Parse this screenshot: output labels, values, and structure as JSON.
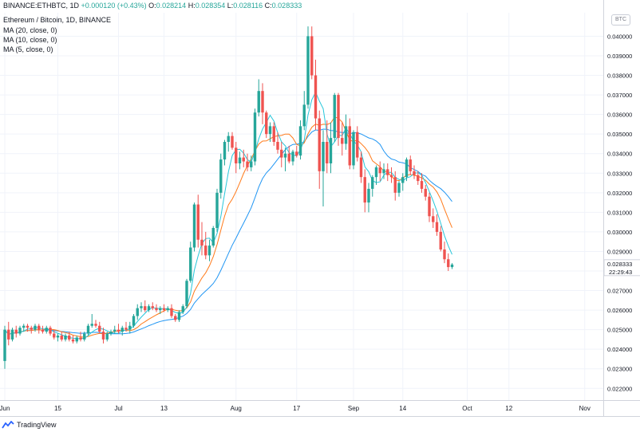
{
  "header": {
    "symbol_line": "BINANCE:ETHBTC, 1D",
    "change": "+0.000120 (+0.43%)",
    "open_key": "O:",
    "open": "0.028214",
    "high_key": "H:",
    "high": "0.028354",
    "low_key": "L:",
    "low": "0.028116",
    "close_key": "C:",
    "close": "0.028333",
    "title": "Ethereum / Bitcoin, 1D, BINANCE",
    "studies": [
      "MA (20, close, 0)",
      "MA (10, close, 0)",
      "MA (5, close, 0)"
    ]
  },
  "currency_badge": "BTC",
  "brand": "TradingView",
  "colors": {
    "up": "#26a69a",
    "down": "#ef5350",
    "ma20": "#2196f3",
    "ma10": "#ff7a1a",
    "ma5": "#26c6da",
    "grid": "#f0f3fa",
    "axis_text": "#131722",
    "last_price_badge": "#26a69a"
  },
  "chart_data": {
    "type": "candlestick",
    "title": "Ethereum / Bitcoin, 1D, BINANCE",
    "ylim": [
      0.0214,
      0.0412
    ],
    "y_ticks": [
      "0.040000",
      "0.039000",
      "0.038000",
      "0.037000",
      "0.036000",
      "0.035000",
      "0.034000",
      "0.033000",
      "0.032000",
      "0.031000",
      "0.030000",
      "0.029000",
      "0.028000",
      "0.027000",
      "0.026000",
      "0.025000",
      "0.024000",
      "0.023000",
      "0.022000"
    ],
    "x_ticks": [
      {
        "label": "Jun",
        "day": 0
      },
      {
        "label": "15",
        "day": 14
      },
      {
        "label": "Jul",
        "day": 30
      },
      {
        "label": "13",
        "day": 42
      },
      {
        "label": "Aug",
        "day": 61
      },
      {
        "label": "17",
        "day": 77
      },
      {
        "label": "Sep",
        "day": 92
      },
      {
        "label": "14",
        "day": 105
      },
      {
        "label": "Oct",
        "day": 122
      },
      {
        "label": "12",
        "day": 133
      },
      {
        "label": "Nov",
        "day": 153
      }
    ],
    "last_price": "0.028333",
    "countdown": "22:29:43",
    "grid": true,
    "series": [
      {
        "name": "MA (20, close, 0)",
        "kind": "ma",
        "period": 20
      },
      {
        "name": "MA (10, close, 0)",
        "kind": "ma",
        "period": 10
      },
      {
        "name": "MA (5, close, 0)",
        "kind": "ma",
        "period": 5
      }
    ],
    "candles": [
      [
        0.0234,
        0.0252,
        0.023,
        0.025
      ],
      [
        0.025,
        0.0254,
        0.0242,
        0.0245
      ],
      [
        0.0245,
        0.0251,
        0.0244,
        0.025
      ],
      [
        0.025,
        0.0252,
        0.0246,
        0.0248
      ],
      [
        0.0248,
        0.0252,
        0.0247,
        0.0251
      ],
      [
        0.0251,
        0.0253,
        0.0249,
        0.0252
      ],
      [
        0.0252,
        0.0253,
        0.0249,
        0.0251
      ],
      [
        0.0251,
        0.0252,
        0.0248,
        0.025
      ],
      [
        0.025,
        0.0253,
        0.0249,
        0.0252
      ],
      [
        0.0252,
        0.0253,
        0.0248,
        0.025
      ],
      [
        0.025,
        0.0252,
        0.0248,
        0.0249
      ],
      [
        0.0249,
        0.0252,
        0.0248,
        0.0251
      ],
      [
        0.0251,
        0.0252,
        0.0247,
        0.0248
      ],
      [
        0.0248,
        0.025,
        0.0245,
        0.0246
      ],
      [
        0.0246,
        0.0248,
        0.0244,
        0.0247
      ],
      [
        0.0247,
        0.0249,
        0.0244,
        0.0245
      ],
      [
        0.0245,
        0.0248,
        0.0244,
        0.0247
      ],
      [
        0.0247,
        0.0249,
        0.0244,
        0.0245
      ],
      [
        0.0245,
        0.0247,
        0.0243,
        0.0244
      ],
      [
        0.0244,
        0.0247,
        0.0243,
        0.0246
      ],
      [
        0.0246,
        0.0249,
        0.0244,
        0.0245
      ],
      [
        0.0245,
        0.0249,
        0.0244,
        0.0248
      ],
      [
        0.0248,
        0.0253,
        0.0247,
        0.0252
      ],
      [
        0.0252,
        0.0258,
        0.0251,
        0.0253
      ],
      [
        0.0253,
        0.0255,
        0.0251,
        0.0252
      ],
      [
        0.0252,
        0.0254,
        0.0248,
        0.0249
      ],
      [
        0.0249,
        0.0251,
        0.0243,
        0.0245
      ],
      [
        0.0245,
        0.0249,
        0.0244,
        0.0248
      ],
      [
        0.0248,
        0.025,
        0.0247,
        0.0249
      ],
      [
        0.0249,
        0.0252,
        0.0248,
        0.025
      ],
      [
        0.025,
        0.0253,
        0.0248,
        0.0249
      ],
      [
        0.0249,
        0.0252,
        0.0247,
        0.0251
      ],
      [
        0.0251,
        0.0254,
        0.0249,
        0.025
      ],
      [
        0.025,
        0.0254,
        0.0248,
        0.0252
      ],
      [
        0.0252,
        0.0258,
        0.0251,
        0.0257
      ],
      [
        0.0257,
        0.0263,
        0.0255,
        0.0261
      ],
      [
        0.0261,
        0.0264,
        0.0259,
        0.0262
      ],
      [
        0.0262,
        0.0265,
        0.0259,
        0.026
      ],
      [
        0.026,
        0.0263,
        0.0259,
        0.0262
      ],
      [
        0.0262,
        0.0264,
        0.026,
        0.0261
      ],
      [
        0.0261,
        0.0263,
        0.0259,
        0.026
      ],
      [
        0.026,
        0.0262,
        0.0258,
        0.0261
      ],
      [
        0.0261,
        0.0263,
        0.0259,
        0.026
      ],
      [
        0.026,
        0.0262,
        0.0259,
        0.0261
      ],
      [
        0.0261,
        0.0263,
        0.0256,
        0.0257
      ],
      [
        0.0257,
        0.0258,
        0.0254,
        0.0255
      ],
      [
        0.0255,
        0.026,
        0.0254,
        0.0259
      ],
      [
        0.0259,
        0.0263,
        0.0258,
        0.0262
      ],
      [
        0.0262,
        0.0276,
        0.0261,
        0.0275
      ],
      [
        0.0275,
        0.0295,
        0.0274,
        0.0292
      ],
      [
        0.0292,
        0.0315,
        0.029,
        0.0314
      ],
      [
        0.0314,
        0.0319,
        0.0292,
        0.0296
      ],
      [
        0.0296,
        0.0305,
        0.0288,
        0.0293
      ],
      [
        0.0293,
        0.03,
        0.0286,
        0.0288
      ],
      [
        0.0288,
        0.0296,
        0.0285,
        0.0293
      ],
      [
        0.0293,
        0.0303,
        0.0292,
        0.0302
      ],
      [
        0.0302,
        0.0322,
        0.03,
        0.032
      ],
      [
        0.032,
        0.034,
        0.0317,
        0.0337
      ],
      [
        0.0337,
        0.0347,
        0.0334,
        0.0346
      ],
      [
        0.0346,
        0.0351,
        0.0341,
        0.0349
      ],
      [
        0.0349,
        0.0351,
        0.0342,
        0.0343
      ],
      [
        0.0343,
        0.0346,
        0.033,
        0.0335
      ],
      [
        0.0335,
        0.0341,
        0.0332,
        0.0338
      ],
      [
        0.0338,
        0.0342,
        0.0333,
        0.0336
      ],
      [
        0.0336,
        0.034,
        0.0331,
        0.0333
      ],
      [
        0.0333,
        0.0339,
        0.0331,
        0.0336
      ],
      [
        0.0336,
        0.0363,
        0.0334,
        0.0361
      ],
      [
        0.0361,
        0.0378,
        0.0359,
        0.0372
      ],
      [
        0.0372,
        0.0376,
        0.0355,
        0.0361
      ],
      [
        0.0361,
        0.0362,
        0.0348,
        0.035
      ],
      [
        0.035,
        0.0356,
        0.0346,
        0.0354
      ],
      [
        0.0354,
        0.0356,
        0.0344,
        0.0346
      ],
      [
        0.0346,
        0.0351,
        0.034,
        0.0342
      ],
      [
        0.0342,
        0.0346,
        0.0333,
        0.0338
      ],
      [
        0.0338,
        0.0343,
        0.0331,
        0.034
      ],
      [
        0.034,
        0.0344,
        0.0335,
        0.0336
      ],
      [
        0.0336,
        0.0342,
        0.0334,
        0.0341
      ],
      [
        0.0341,
        0.0344,
        0.0338,
        0.0339
      ],
      [
        0.0339,
        0.0357,
        0.0337,
        0.0354
      ],
      [
        0.0354,
        0.0372,
        0.0352,
        0.0365
      ],
      [
        0.0365,
        0.0405,
        0.0363,
        0.04
      ],
      [
        0.04,
        0.0405,
        0.0378,
        0.038
      ],
      [
        0.038,
        0.0388,
        0.0352,
        0.0358
      ],
      [
        0.0358,
        0.0362,
        0.0322,
        0.0331
      ],
      [
        0.0331,
        0.0352,
        0.0313,
        0.0346
      ],
      [
        0.0346,
        0.0357,
        0.033,
        0.0335
      ],
      [
        0.0335,
        0.0356,
        0.033,
        0.0348
      ],
      [
        0.0348,
        0.0371,
        0.0346,
        0.037
      ],
      [
        0.037,
        0.0371,
        0.0344,
        0.0348
      ],
      [
        0.0348,
        0.0356,
        0.0339,
        0.0345
      ],
      [
        0.0345,
        0.036,
        0.0342,
        0.0354
      ],
      [
        0.0354,
        0.0358,
        0.0332,
        0.0334
      ],
      [
        0.0334,
        0.0352,
        0.0332,
        0.0351
      ],
      [
        0.0351,
        0.0354,
        0.0336,
        0.0338
      ],
      [
        0.0338,
        0.0341,
        0.0325,
        0.0328
      ],
      [
        0.0328,
        0.0332,
        0.031,
        0.0315
      ],
      [
        0.0315,
        0.0325,
        0.031,
        0.0322
      ],
      [
        0.0322,
        0.0329,
        0.0318,
        0.0328
      ],
      [
        0.0328,
        0.0334,
        0.0324,
        0.0333
      ],
      [
        0.0333,
        0.0336,
        0.0326,
        0.033
      ],
      [
        0.033,
        0.0335,
        0.0327,
        0.0332
      ],
      [
        0.0332,
        0.0335,
        0.0326,
        0.0329
      ],
      [
        0.0329,
        0.0333,
        0.0325,
        0.0328
      ],
      [
        0.0328,
        0.0331,
        0.0316,
        0.032
      ],
      [
        0.032,
        0.0326,
        0.0318,
        0.0325
      ],
      [
        0.0325,
        0.033,
        0.0321,
        0.0328
      ],
      [
        0.0328,
        0.0338,
        0.0326,
        0.0337
      ],
      [
        0.0337,
        0.0339,
        0.0329,
        0.0331
      ],
      [
        0.0331,
        0.0334,
        0.0327,
        0.0329
      ],
      [
        0.0329,
        0.0331,
        0.0324,
        0.0326
      ],
      [
        0.0326,
        0.033,
        0.032,
        0.0322
      ],
      [
        0.0322,
        0.0324,
        0.0316,
        0.0318
      ],
      [
        0.0318,
        0.032,
        0.0305,
        0.0308
      ],
      [
        0.0308,
        0.0312,
        0.0302,
        0.0305
      ],
      [
        0.0305,
        0.0309,
        0.0298,
        0.03
      ],
      [
        0.03,
        0.0303,
        0.029,
        0.0291
      ],
      [
        0.0291,
        0.0295,
        0.0284,
        0.0286
      ],
      [
        0.0286,
        0.0289,
        0.028,
        0.0282
      ],
      [
        0.0282,
        0.0284,
        0.0281,
        0.02833
      ]
    ]
  }
}
